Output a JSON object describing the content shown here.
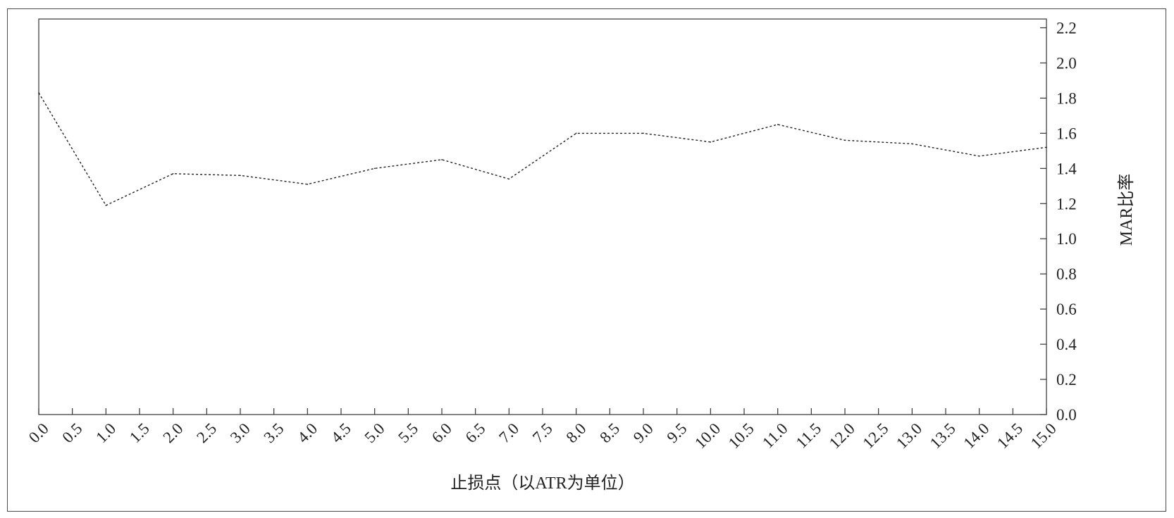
{
  "chart_data": {
    "type": "line",
    "title": "",
    "xlabel": "止损点（以ATR为单位）",
    "ylabel": "MAR比率",
    "x_tick_labels": [
      "0.0",
      "0.5",
      "1.0",
      "1.5",
      "2.0",
      "2.5",
      "3.0",
      "3.5",
      "4.0",
      "4.5",
      "5.0",
      "5.5",
      "6.0",
      "6.5",
      "7.0",
      "7.5",
      "8.0",
      "8.5",
      "9.0",
      "9.5",
      "10.0",
      "10.5",
      "11.0",
      "11.5",
      "12.0",
      "12.5",
      "13.0",
      "13.5",
      "14.0",
      "14.5",
      "15.0"
    ],
    "y_tick_labels": [
      "0.0",
      "0.2",
      "0.4",
      "0.6",
      "0.8",
      "1.0",
      "1.2",
      "1.4",
      "1.6",
      "1.8",
      "2.0",
      "2.2"
    ],
    "xlim": [
      0,
      15
    ],
    "ylim": [
      0,
      2.25
    ],
    "y_axis_side": "right",
    "grid": false,
    "legend": "none",
    "series": [
      {
        "x": [
          0,
          1,
          2,
          3,
          4,
          5,
          6,
          7,
          8,
          9,
          10,
          11,
          12,
          13,
          14,
          15
        ],
        "values": [
          1.83,
          1.19,
          1.37,
          1.36,
          1.31,
          1.4,
          1.45,
          1.34,
          1.6,
          1.6,
          1.55,
          1.65,
          1.56,
          1.54,
          1.47,
          1.52
        ],
        "style": "dashed",
        "color": "#222222"
      }
    ]
  }
}
